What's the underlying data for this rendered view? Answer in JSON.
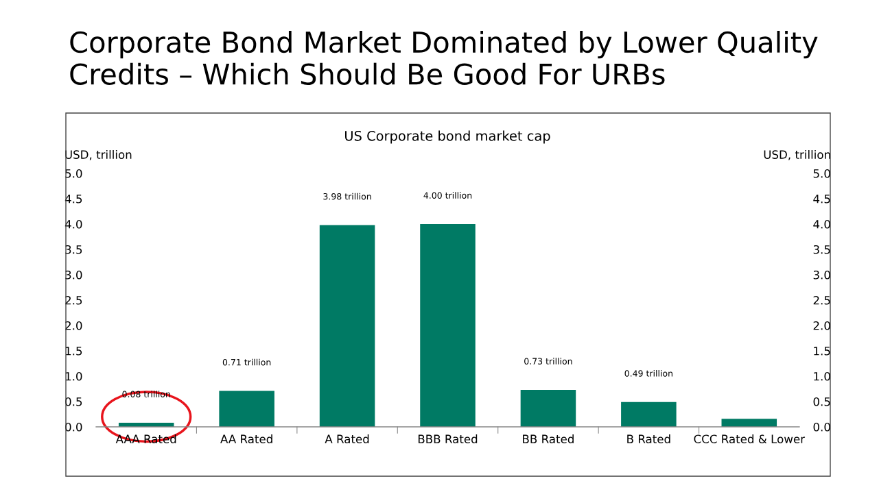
{
  "chart_data": {
    "type": "bar",
    "title": "Corporate Bond Market Dominated by Lower Quality Credits – Which Should Be Good For URBs",
    "subtitle": "US Corporate bond market cap",
    "ylabel": "USD, trillion",
    "y2label": "USD, trillion",
    "categories": [
      "AAA Rated",
      "AA Rated",
      "A Rated",
      "BBB Rated",
      "BB Rated",
      "B Rated",
      "CCC Rated & Lower"
    ],
    "values": [
      0.08,
      0.71,
      3.98,
      4.0,
      0.73,
      0.49,
      0.16
    ],
    "value_labels": [
      "0.08 trillion",
      "0.71 trillion",
      "3.98 trillion",
      "4.00 trillion",
      "0.73 trillion",
      "0.49 trillion",
      null
    ],
    "color": "#007a64",
    "ylim": [
      0,
      5
    ],
    "y2lim": [
      0,
      5
    ],
    "yticks": [
      {
        "value": 0,
        "label": "0.0"
      },
      {
        "value": 0.5,
        "label": "0.5"
      },
      {
        "value": 1,
        "label": "1.0"
      },
      {
        "value": 1.5,
        "label": "1.5"
      },
      {
        "value": 2,
        "label": "2.0"
      },
      {
        "value": 2.5,
        "label": "2.5"
      },
      {
        "value": 3,
        "label": "3.0"
      },
      {
        "value": 3.5,
        "label": "3.5"
      },
      {
        "value": 4,
        "label": "4.0"
      },
      {
        "value": 4.5,
        "label": "4.5"
      },
      {
        "value": 5,
        "label": "5.0"
      }
    ],
    "y2ticks": [
      {
        "value": 0,
        "label": "0.0"
      },
      {
        "value": 0.5,
        "label": "0.5"
      },
      {
        "value": 1,
        "label": "1.0"
      },
      {
        "value": 1.5,
        "label": "1.5"
      },
      {
        "value": 2,
        "label": "2.0"
      },
      {
        "value": 2.5,
        "label": "2.5"
      },
      {
        "value": 3,
        "label": "3.0"
      },
      {
        "value": 3.5,
        "label": "3.5"
      },
      {
        "value": 4,
        "label": "4.0"
      },
      {
        "value": 4.5,
        "label": "4.5"
      },
      {
        "value": 5,
        "label": "5.0"
      }
    ],
    "grid": false,
    "legend": false
  }
}
